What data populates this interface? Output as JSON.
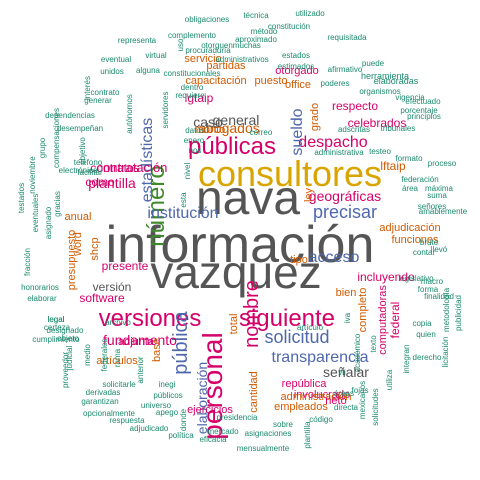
{
  "colors": {
    "background": "#ffffff",
    "gray": "#555555",
    "gold": "#d9a400",
    "blue": "#4f68ad",
    "pink": "#d5006a",
    "green": "#3d8a2a",
    "orange": "#d15a00",
    "teal": "#1b8a6e",
    "purple": "#6a4d9a"
  },
  "words": [
    {
      "text": "información",
      "color": "gray"
    },
    {
      "text": "vazquez",
      "color": "gray"
    },
    {
      "text": "nava",
      "color": "gray"
    },
    {
      "text": "consultores",
      "color": "gold"
    },
    {
      "text": "públicas",
      "color": "pink"
    },
    {
      "text": "número",
      "color": "green"
    },
    {
      "text": "personal",
      "color": "pink"
    },
    {
      "text": "versiones",
      "color": "pink"
    },
    {
      "text": "siguiente",
      "color": "pink"
    },
    {
      "text": "nombre",
      "color": "pink"
    },
    {
      "text": "pública",
      "color": "blue"
    },
    {
      "text": "transparencia",
      "color": "blue"
    },
    {
      "text": "solicitud",
      "color": "blue"
    },
    {
      "text": "institución",
      "color": "blue"
    },
    {
      "text": "precisar",
      "color": "blue"
    },
    {
      "text": "estadísticas",
      "color": "blue"
    },
    {
      "text": "acceso",
      "color": "blue"
    },
    {
      "text": "despacho",
      "color": "pink"
    },
    {
      "text": "sueldo",
      "color": "blue"
    },
    {
      "text": "elaboración",
      "color": "blue"
    },
    {
      "text": "plantilla",
      "color": "pink"
    },
    {
      "text": "fundamento",
      "color": "pink"
    },
    {
      "text": "abogados",
      "color": "orange"
    },
    {
      "text": "general",
      "color": "gray"
    },
    {
      "text": "caso",
      "color": "gray"
    },
    {
      "text": "geográficas",
      "color": "pink"
    },
    {
      "text": "señalar",
      "color": "gray"
    },
    {
      "text": "incluyendo",
      "color": "pink"
    },
    {
      "text": "contratación",
      "color": "pink"
    },
    {
      "text": "como",
      "color": "pink"
    },
    {
      "text": "presente",
      "color": "pink"
    },
    {
      "text": "versión",
      "color": "gray"
    },
    {
      "text": "contratos",
      "color": "pink"
    },
    {
      "text": "respecto",
      "color": "pink"
    },
    {
      "text": "celebrados",
      "color": "pink"
    },
    {
      "text": "software",
      "color": "pink"
    },
    {
      "text": "lftaip",
      "color": "orange"
    },
    {
      "text": "lgtaip",
      "color": "pink"
    },
    {
      "text": "adjudicación",
      "color": "orange"
    },
    {
      "text": "funciones",
      "color": "orange"
    },
    {
      "text": "federal",
      "color": "pink"
    },
    {
      "text": "computadoras",
      "color": "pink"
    },
    {
      "text": "completo",
      "color": "orange"
    },
    {
      "text": "involucrado",
      "color": "pink"
    },
    {
      "text": "administración",
      "color": "orange"
    },
    {
      "text": "empleados",
      "color": "orange"
    },
    {
      "text": "ejercicios",
      "color": "pink"
    },
    {
      "text": "cantidad",
      "color": "orange"
    },
    {
      "text": "república",
      "color": "pink"
    },
    {
      "text": "neto",
      "color": "pink"
    },
    {
      "text": "artículos",
      "color": "orange"
    },
    {
      "text": "adjunta",
      "color": "pink"
    },
    {
      "text": "capacitación",
      "color": "orange"
    },
    {
      "text": "puesto",
      "color": "orange"
    },
    {
      "text": "servicio",
      "color": "orange"
    },
    {
      "text": "partidas",
      "color": "orange"
    },
    {
      "text": "otorgado",
      "color": "pink"
    },
    {
      "text": "office",
      "color": "orange"
    },
    {
      "text": "monto",
      "color": "orange"
    },
    {
      "text": "anual",
      "color": "orange"
    },
    {
      "text": "presupuesto",
      "color": "orange"
    },
    {
      "text": "word",
      "color": "orange"
    },
    {
      "text": "shcp",
      "color": "orange"
    },
    {
      "text": "base",
      "color": "orange"
    },
    {
      "text": "total",
      "color": "orange"
    },
    {
      "text": "tipo",
      "color": "orange"
    },
    {
      "text": "bien",
      "color": "orange"
    },
    {
      "text": "ley",
      "color": "orange"
    },
    {
      "text": "grado",
      "color": "orange"
    },
    {
      "text": "elaboradas",
      "color": "teal"
    },
    {
      "text": "herramienta",
      "color": "teal"
    },
    {
      "text": "poderes",
      "color": "teal"
    },
    {
      "text": "vigencia",
      "color": "teal"
    },
    {
      "text": "afirmativo",
      "color": "teal"
    },
    {
      "text": "requisitada",
      "color": "teal"
    },
    {
      "text": "obligaciones",
      "color": "teal"
    },
    {
      "text": "técnica",
      "color": "teal"
    },
    {
      "text": "utilizado",
      "color": "teal"
    },
    {
      "text": "complemento",
      "color": "teal"
    },
    {
      "text": "método",
      "color": "teal"
    },
    {
      "text": "aproximado",
      "color": "teal"
    },
    {
      "text": "representa",
      "color": "teal"
    },
    {
      "text": "procuraduría",
      "color": "teal"
    },
    {
      "text": "otorguenmuchas",
      "color": "teal"
    },
    {
      "text": "estados",
      "color": "teal"
    },
    {
      "text": "eventual",
      "color": "teal"
    },
    {
      "text": "virtual",
      "color": "teal"
    },
    {
      "text": "administrativos",
      "color": "teal"
    },
    {
      "text": "estimados",
      "color": "teal"
    },
    {
      "text": "puede",
      "color": "teal"
    },
    {
      "text": "unidos",
      "color": "teal"
    },
    {
      "text": "alguna",
      "color": "teal"
    },
    {
      "text": "constitucionales",
      "color": "teal"
    },
    {
      "text": "organismos",
      "color": "teal"
    },
    {
      "text": "contrato",
      "color": "teal"
    },
    {
      "text": "generar",
      "color": "teal"
    },
    {
      "text": "dependencias",
      "color": "teal"
    },
    {
      "text": "desempeñan",
      "color": "teal"
    },
    {
      "text": "compensaciones",
      "color": "teal"
    },
    {
      "text": "grupo",
      "color": "teal"
    },
    {
      "text": "noviembre",
      "color": "teal"
    },
    {
      "text": "electrónico",
      "color": "teal"
    },
    {
      "text": "facilitar",
      "color": "teal"
    },
    {
      "text": "gracias",
      "color": "teal"
    },
    {
      "text": "eventuales",
      "color": "teal"
    },
    {
      "text": "asignado",
      "color": "teal"
    },
    {
      "text": "testados",
      "color": "teal"
    },
    {
      "text": "fracción",
      "color": "teal"
    },
    {
      "text": "honorarios",
      "color": "teal"
    },
    {
      "text": "elaborar",
      "color": "teal"
    },
    {
      "text": "legal",
      "color": "teal"
    },
    {
      "text": "certeza",
      "color": "teal"
    },
    {
      "text": "designado",
      "color": "teal"
    },
    {
      "text": "cumplimiento",
      "color": "teal"
    },
    {
      "text": "objeto",
      "color": "teal"
    },
    {
      "text": "proveedor",
      "color": "teal"
    },
    {
      "text": "solicitarle",
      "color": "teal"
    },
    {
      "text": "derivadas",
      "color": "teal"
    },
    {
      "text": "garantizan",
      "color": "teal"
    },
    {
      "text": "opcionalmente",
      "color": "teal"
    },
    {
      "text": "respuesta",
      "color": "teal"
    },
    {
      "text": "adjudicado",
      "color": "teal"
    },
    {
      "text": "apego",
      "color": "teal"
    },
    {
      "text": "universo",
      "color": "teal"
    },
    {
      "text": "públicos",
      "color": "teal"
    },
    {
      "text": "inegi",
      "color": "teal"
    },
    {
      "text": "anterior",
      "color": "teal"
    },
    {
      "text": "rama",
      "color": "teal"
    },
    {
      "text": "medio",
      "color": "teal"
    },
    {
      "text": "federales",
      "color": "teal"
    },
    {
      "text": "judicial",
      "color": "teal"
    },
    {
      "text": "política",
      "color": "teal"
    },
    {
      "text": "donde",
      "color": "teal"
    },
    {
      "text": "presidencia",
      "color": "teal"
    },
    {
      "text": "mercado",
      "color": "teal"
    },
    {
      "text": "asignaciones",
      "color": "teal"
    },
    {
      "text": "eficacia",
      "color": "teal"
    },
    {
      "text": "mensualmente",
      "color": "teal"
    },
    {
      "text": "sobre",
      "color": "teal"
    },
    {
      "text": "código",
      "color": "teal"
    },
    {
      "text": "plantilla",
      "color": "teal"
    },
    {
      "text": "directa",
      "color": "teal"
    },
    {
      "text": "áreas",
      "color": "teal"
    },
    {
      "text": "fojas",
      "color": "teal"
    },
    {
      "text": "mexicanos",
      "color": "teal"
    },
    {
      "text": "solicitudes",
      "color": "teal"
    },
    {
      "text": "utiliza",
      "color": "teal"
    },
    {
      "text": "integran",
      "color": "teal"
    },
    {
      "text": "derecho",
      "color": "teal"
    },
    {
      "text": "licitación",
      "color": "teal"
    },
    {
      "text": "copia",
      "color": "teal"
    },
    {
      "text": "quien",
      "color": "teal"
    },
    {
      "text": "metodología",
      "color": "teal"
    },
    {
      "text": "publicidad",
      "color": "teal"
    },
    {
      "text": "finalidad",
      "color": "teal"
    },
    {
      "text": "macro",
      "color": "teal"
    },
    {
      "text": "forma",
      "color": "teal"
    },
    {
      "text": "bruto",
      "color": "teal"
    },
    {
      "text": "llevó",
      "color": "teal"
    },
    {
      "text": "contar",
      "color": "teal"
    },
    {
      "text": "legislativo",
      "color": "teal"
    },
    {
      "text": "señores",
      "color": "teal"
    },
    {
      "text": "amablemente",
      "color": "teal"
    },
    {
      "text": "suma",
      "color": "teal"
    },
    {
      "text": "área",
      "color": "teal"
    },
    {
      "text": "máxima",
      "color": "teal"
    },
    {
      "text": "federación",
      "color": "teal"
    },
    {
      "text": "formato",
      "color": "teal"
    },
    {
      "text": "proceso",
      "color": "teal"
    },
    {
      "text": "testeo",
      "color": "teal"
    },
    {
      "text": "administrativa",
      "color": "teal"
    },
    {
      "text": "tribunales",
      "color": "teal"
    },
    {
      "text": "principios",
      "color": "teal"
    },
    {
      "text": "efectuado",
      "color": "teal"
    },
    {
      "text": "porcentaje",
      "color": "teal"
    },
    {
      "text": "adscritas",
      "color": "teal"
    },
    {
      "text": "autónomos",
      "color": "teal"
    },
    {
      "text": "servidores",
      "color": "teal"
    },
    {
      "text": "requiere",
      "color": "teal"
    },
    {
      "text": "dentro",
      "color": "teal"
    },
    {
      "text": "objetivo",
      "color": "teal"
    },
    {
      "text": "datos",
      "color": "teal"
    },
    {
      "text": "enero",
      "color": "teal"
    },
    {
      "text": "nos",
      "color": "teal"
    },
    {
      "text": "correo",
      "color": "teal"
    },
    {
      "text": "teléfono",
      "color": "teal"
    },
    {
      "text": "uso",
      "color": "teal"
    },
    {
      "text": "constitución",
      "color": "teal"
    },
    {
      "text": "interés",
      "color": "teal"
    },
    {
      "text": "nivel",
      "color": "teal"
    },
    {
      "text": "esta",
      "color": "teal"
    },
    {
      "text": "archivo",
      "color": "teal"
    },
    {
      "text": "legal",
      "color": "teal"
    },
    {
      "text": "artículo",
      "color": "teal"
    },
    {
      "text": "académico",
      "color": "teal"
    },
    {
      "text": "texto",
      "color": "teal"
    },
    {
      "text": "vii",
      "color": "teal"
    },
    {
      "text": "iva",
      "color": "teal"
    }
  ]
}
